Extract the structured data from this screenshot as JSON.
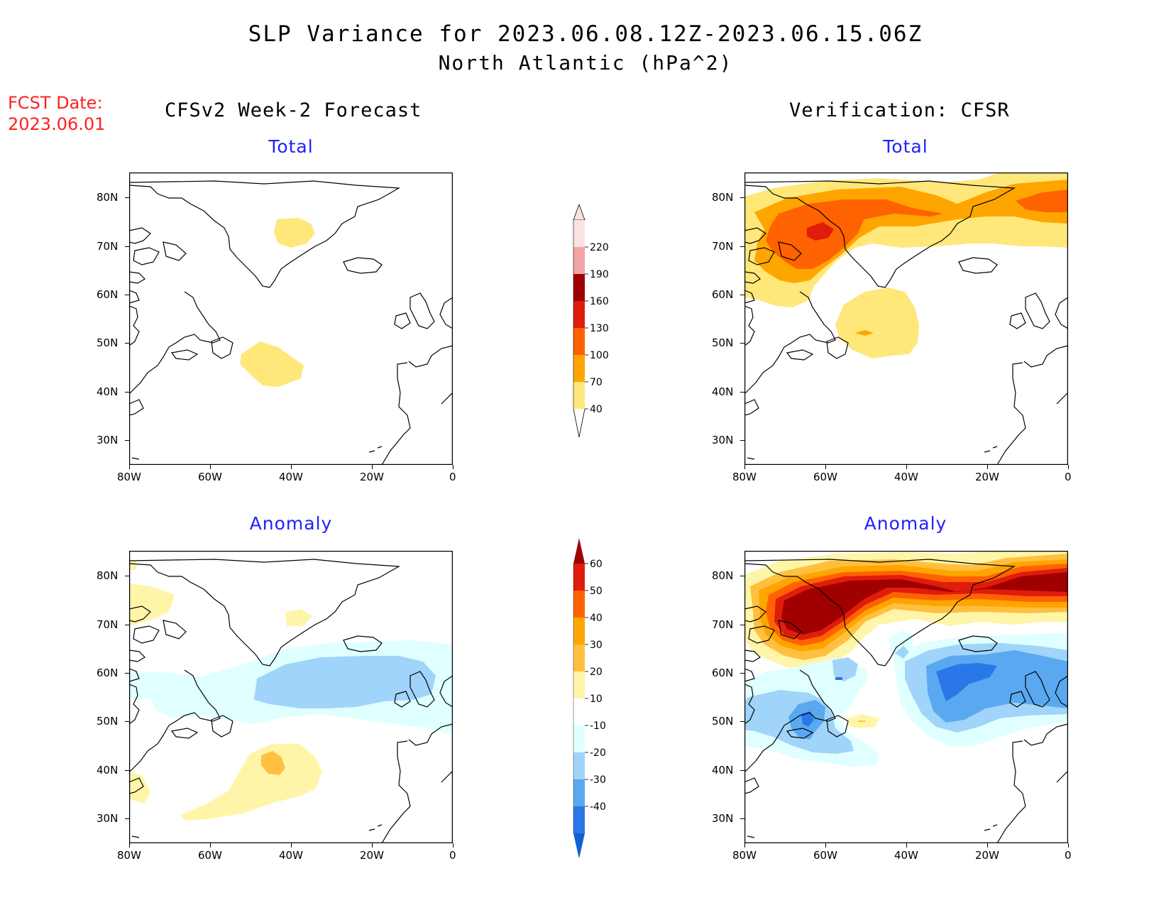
{
  "title_line1": "SLP Variance for 2023.06.08.12Z-2023.06.15.06Z",
  "title_line2": "North Atlantic (hPa^2)",
  "fcst_date_label": "FCST Date:",
  "fcst_date_value": "2023.06.01",
  "left_column_title": "CFSv2 Week-2 Forecast",
  "right_column_title": "Verification: CFSR",
  "panel_labels": {
    "fcst_total": "Total",
    "verif_total": "Total",
    "fcst_anom": "Anomaly",
    "verif_anom": "Anomaly"
  },
  "axes": {
    "lat_ticks": [
      "80N",
      "70N",
      "60N",
      "50N",
      "40N",
      "30N"
    ],
    "lon_ticks": [
      "80W",
      "60W",
      "40W",
      "20W",
      "0"
    ]
  },
  "colorbars": {
    "total": {
      "levels": [
        "220",
        "190",
        "160",
        "130",
        "100",
        "70",
        "40"
      ],
      "colors": [
        "#fde2e2",
        "#f2a5a5",
        "#a00000",
        "#e01c0c",
        "#ff6200",
        "#ffa500",
        "#ffe77a"
      ]
    },
    "anomaly": {
      "levels": [
        "60",
        "50",
        "40",
        "30",
        "20",
        "10",
        "-10",
        "-20",
        "-30",
        "-40"
      ],
      "colors": [
        "#a00000",
        "#e01c0c",
        "#ff6200",
        "#ffa500",
        "#ffc040",
        "#fff5a8",
        "#ffffff",
        "#e0ffff",
        "#a0d4fa",
        "#5aa8f0",
        "#2a78e8",
        "#1060d0"
      ]
    }
  }
}
